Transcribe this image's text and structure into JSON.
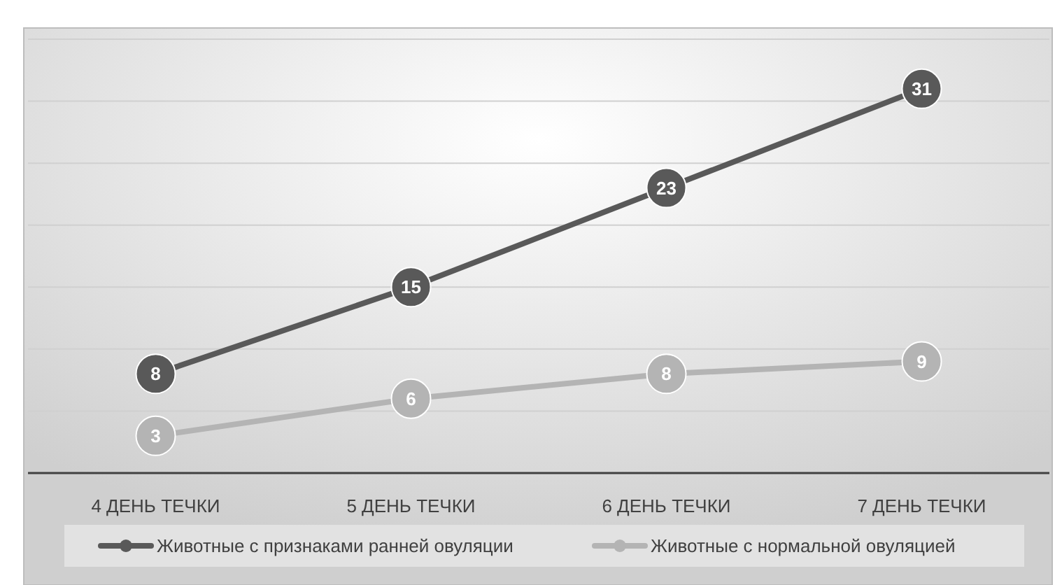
{
  "chart_data": {
    "type": "line",
    "categories": [
      "4 ДЕНЬ ТЕЧКИ",
      "5 ДЕНЬ ТЕЧКИ",
      "6 ДЕНЬ ТЕЧКИ",
      "7 ДЕНЬ ТЕЧКИ"
    ],
    "series": [
      {
        "name": "Животные с признаками ранней овуляции",
        "color": "#595959",
        "values": [
          8,
          15,
          23,
          31
        ]
      },
      {
        "name": "Животные с нормальной овуляцией",
        "color": "#b4b4b4",
        "values": [
          3,
          6,
          8,
          9
        ]
      }
    ],
    "ylim": [
      0,
      35
    ],
    "yticks": [
      0,
      {
        "value": 5,
        "label": null
      },
      {
        "value": 10,
        "label": null
      },
      {
        "value": 15,
        "label": null
      },
      {
        "value": 20,
        "label": null
      },
      {
        "value": 25,
        "label": null
      },
      {
        "value": 30,
        "label": null
      },
      {
        "value": 35,
        "label": null
      }
    ],
    "tick_labels": "x",
    "grid": "y",
    "legend": "bottom",
    "marker": "circle",
    "line_style": "solid",
    "data_labels": true
  }
}
